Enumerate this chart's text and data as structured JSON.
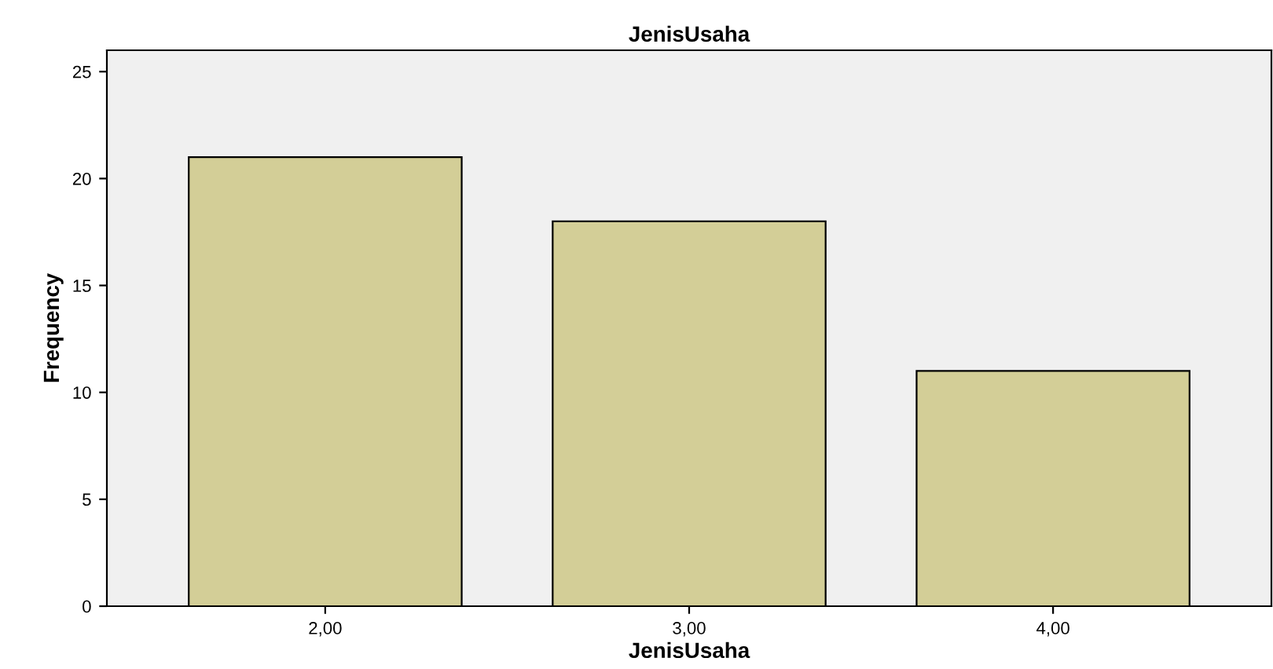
{
  "chart_data": {
    "type": "bar",
    "title": "JenisUsaha",
    "xlabel": "JenisUsaha",
    "ylabel": "Frequency",
    "categories": [
      "2,00",
      "3,00",
      "4,00"
    ],
    "values": [
      21,
      18,
      11
    ],
    "color": "#d3ce97",
    "ylim": [
      0,
      26
    ],
    "yticks": [
      0,
      5,
      10,
      15,
      20,
      25
    ],
    "grid": false
  }
}
